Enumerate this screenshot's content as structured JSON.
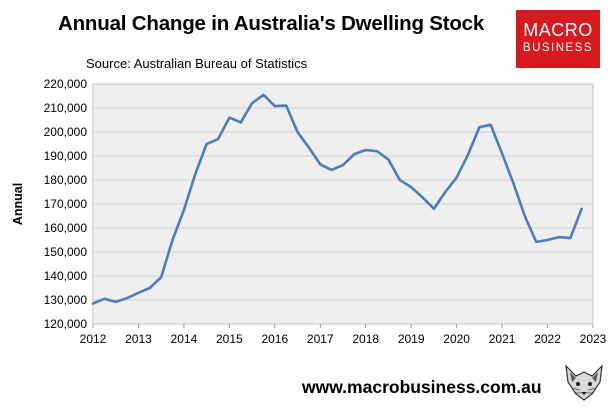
{
  "header": {
    "title": "Annual Change in Australia's Dwelling Stock",
    "source": "Source: Australian Bureau of Statistics"
  },
  "logo": {
    "line1": "MACRO",
    "line2": "BUSINESS",
    "color": "#d81920"
  },
  "footer": {
    "website": "www.macrobusiness.com.au"
  },
  "chart_data": {
    "type": "line",
    "title": "Annual Change in Australia's Dwelling Stock",
    "xlabel": "",
    "ylabel": "Annual",
    "xlim": [
      2012,
      2023
    ],
    "ylim": [
      120000,
      220000
    ],
    "xticks": [
      "2012",
      "2013",
      "2014",
      "2015",
      "2016",
      "2017",
      "2018",
      "2019",
      "2020",
      "2021",
      "2022",
      "2023"
    ],
    "yticks": [
      "120,000",
      "130,000",
      "140,000",
      "150,000",
      "160,000",
      "170,000",
      "180,000",
      "190,000",
      "200,000",
      "210,000",
      "220,000"
    ],
    "grid": "horizontal",
    "plot_background": "#efefef",
    "line_color": "#4a7ebb",
    "series": [
      {
        "x": [
          2012.0,
          2012.25,
          2012.5,
          2012.75,
          2013.0,
          2013.25,
          2013.5,
          2013.75,
          2014.0,
          2014.25,
          2014.5,
          2014.75,
          2015.0,
          2015.25,
          2015.5,
          2015.75,
          2016.0,
          2016.25,
          2016.5,
          2016.75,
          2017.0,
          2017.25,
          2017.5,
          2017.75,
          2018.0,
          2018.25,
          2018.5,
          2018.75,
          2019.0,
          2019.25,
          2019.5,
          2019.75,
          2020.0,
          2020.25,
          2020.5,
          2020.75,
          2021.0,
          2021.25,
          2021.5,
          2021.75,
          2022.0,
          2022.25,
          2022.5,
          2022.75
        ],
        "values": [
          128500,
          130500,
          129200,
          130800,
          133000,
          135000,
          139500,
          155000,
          167500,
          182500,
          195000,
          197000,
          206000,
          204000,
          212000,
          215500,
          210800,
          211000,
          200000,
          193500,
          186500,
          184200,
          186200,
          190800,
          192500,
          192000,
          188500,
          180000,
          177000,
          172800,
          168000,
          175000,
          181000,
          190500,
          202000,
          203000,
          191000,
          178500,
          165000,
          154200,
          155000,
          156200,
          155800,
          168000
        ]
      }
    ]
  }
}
